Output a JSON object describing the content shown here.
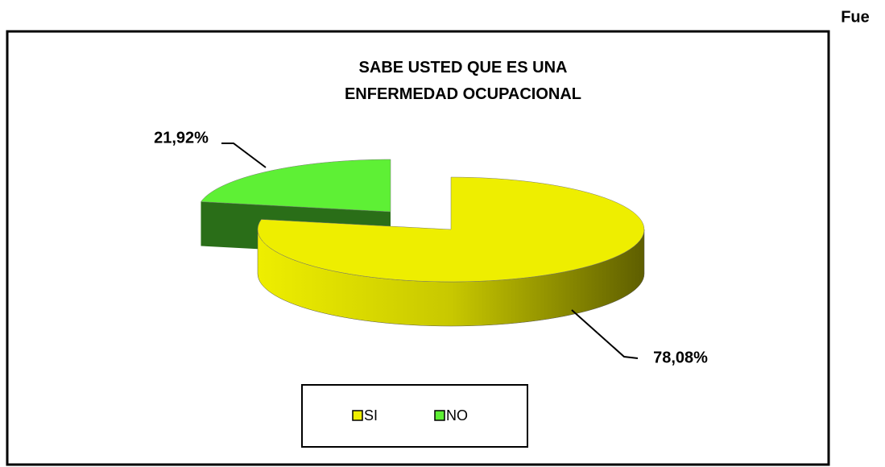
{
  "header": {
    "text": "Fue"
  },
  "chart_data": {
    "type": "pie",
    "title": "SABE USTED QUE ES UNA ENFERMEDAD OCUPACIONAL",
    "categories": [
      "SI",
      "NO"
    ],
    "values": [
      78.08,
      21.92
    ],
    "value_labels": [
      "78,08%",
      "21,92%"
    ],
    "colors": [
      "#eeee00",
      "#5ef035"
    ],
    "legend": "bottom"
  }
}
